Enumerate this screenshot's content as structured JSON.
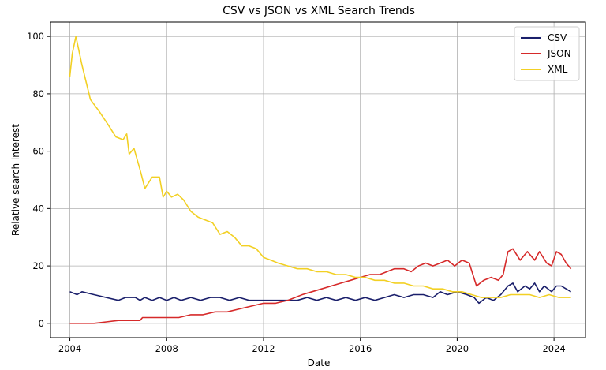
{
  "chart_data": {
    "type": "line",
    "title": "CSV vs JSON vs XML Search Trends",
    "xlabel": "Date",
    "ylabel": "Relative search interest",
    "xlim": [
      2003.2,
      2025.3
    ],
    "ylim": [
      -5,
      105
    ],
    "grid": true,
    "legend_position": "top-right",
    "x_ticks": [
      2004,
      2008,
      2012,
      2016,
      2020,
      2024
    ],
    "y_ticks": [
      0,
      20,
      40,
      60,
      80,
      100
    ],
    "series": [
      {
        "name": "CSV",
        "color": "#1a1f6b",
        "points": [
          [
            2004.0,
            11
          ],
          [
            2004.3,
            10
          ],
          [
            2004.5,
            11
          ],
          [
            2005.0,
            10
          ],
          [
            2005.5,
            9
          ],
          [
            2006.0,
            8
          ],
          [
            2006.3,
            9
          ],
          [
            2006.7,
            9
          ],
          [
            2006.9,
            8
          ],
          [
            2007.1,
            9
          ],
          [
            2007.4,
            8
          ],
          [
            2007.7,
            9
          ],
          [
            2008.0,
            8
          ],
          [
            2008.3,
            9
          ],
          [
            2008.6,
            8
          ],
          [
            2009.0,
            9
          ],
          [
            2009.4,
            8
          ],
          [
            2009.8,
            9
          ],
          [
            2010.2,
            9
          ],
          [
            2010.6,
            8
          ],
          [
            2011.0,
            9
          ],
          [
            2011.4,
            8
          ],
          [
            2011.8,
            8
          ],
          [
            2012.2,
            8
          ],
          [
            2012.6,
            8
          ],
          [
            2013.0,
            8
          ],
          [
            2013.4,
            8
          ],
          [
            2013.8,
            9
          ],
          [
            2014.2,
            8
          ],
          [
            2014.6,
            9
          ],
          [
            2015.0,
            8
          ],
          [
            2015.4,
            9
          ],
          [
            2015.8,
            8
          ],
          [
            2016.2,
            9
          ],
          [
            2016.6,
            8
          ],
          [
            2017.0,
            9
          ],
          [
            2017.4,
            10
          ],
          [
            2017.8,
            9
          ],
          [
            2018.2,
            10
          ],
          [
            2018.6,
            10
          ],
          [
            2019.0,
            9
          ],
          [
            2019.3,
            11
          ],
          [
            2019.6,
            10
          ],
          [
            2020.0,
            11
          ],
          [
            2020.4,
            10
          ],
          [
            2020.7,
            9
          ],
          [
            2020.9,
            7
          ],
          [
            2021.2,
            9
          ],
          [
            2021.5,
            8
          ],
          [
            2021.8,
            10
          ],
          [
            2022.1,
            13
          ],
          [
            2022.3,
            14
          ],
          [
            2022.5,
            11
          ],
          [
            2022.8,
            13
          ],
          [
            2023.0,
            12
          ],
          [
            2023.2,
            14
          ],
          [
            2023.4,
            11
          ],
          [
            2023.6,
            13
          ],
          [
            2023.9,
            11
          ],
          [
            2024.1,
            13
          ],
          [
            2024.3,
            13
          ],
          [
            2024.5,
            12
          ],
          [
            2024.7,
            11
          ]
        ]
      },
      {
        "name": "JSON",
        "color": "#d62a2a",
        "points": [
          [
            2004.0,
            0
          ],
          [
            2005.0,
            0
          ],
          [
            2005.5,
            0.5
          ],
          [
            2006.0,
            1
          ],
          [
            2006.5,
            1
          ],
          [
            2006.9,
            1
          ],
          [
            2007.0,
            2
          ],
          [
            2007.5,
            2
          ],
          [
            2008.0,
            2
          ],
          [
            2008.5,
            2
          ],
          [
            2009.0,
            3
          ],
          [
            2009.5,
            3
          ],
          [
            2010.0,
            4
          ],
          [
            2010.5,
            4
          ],
          [
            2011.0,
            5
          ],
          [
            2011.5,
            6
          ],
          [
            2012.0,
            7
          ],
          [
            2012.5,
            7
          ],
          [
            2013.0,
            8
          ],
          [
            2013.3,
            9
          ],
          [
            2013.6,
            10
          ],
          [
            2014.0,
            11
          ],
          [
            2014.4,
            12
          ],
          [
            2014.8,
            13
          ],
          [
            2015.2,
            14
          ],
          [
            2015.6,
            15
          ],
          [
            2016.0,
            16
          ],
          [
            2016.4,
            17
          ],
          [
            2016.8,
            17
          ],
          [
            2017.1,
            18
          ],
          [
            2017.4,
            19
          ],
          [
            2017.8,
            19
          ],
          [
            2018.1,
            18
          ],
          [
            2018.4,
            20
          ],
          [
            2018.7,
            21
          ],
          [
            2019.0,
            20
          ],
          [
            2019.3,
            21
          ],
          [
            2019.6,
            22
          ],
          [
            2019.9,
            20
          ],
          [
            2020.2,
            22
          ],
          [
            2020.5,
            21
          ],
          [
            2020.8,
            13
          ],
          [
            2021.1,
            15
          ],
          [
            2021.4,
            16
          ],
          [
            2021.7,
            15
          ],
          [
            2021.9,
            17
          ],
          [
            2022.1,
            25
          ],
          [
            2022.3,
            26
          ],
          [
            2022.6,
            22
          ],
          [
            2022.9,
            25
          ],
          [
            2023.2,
            22
          ],
          [
            2023.4,
            25
          ],
          [
            2023.7,
            21
          ],
          [
            2023.9,
            20
          ],
          [
            2024.1,
            25
          ],
          [
            2024.3,
            24
          ],
          [
            2024.5,
            21
          ],
          [
            2024.7,
            19
          ]
        ]
      },
      {
        "name": "XML",
        "color": "#f2d024",
        "points": [
          [
            2004.0,
            86
          ],
          [
            2004.1,
            94
          ],
          [
            2004.25,
            100
          ],
          [
            2004.5,
            90
          ],
          [
            2004.85,
            78
          ],
          [
            2005.2,
            74
          ],
          [
            2005.6,
            69
          ],
          [
            2005.9,
            65
          ],
          [
            2006.2,
            64
          ],
          [
            2006.35,
            66
          ],
          [
            2006.45,
            59
          ],
          [
            2006.65,
            61
          ],
          [
            2006.85,
            55
          ],
          [
            2006.95,
            52
          ],
          [
            2007.1,
            47
          ],
          [
            2007.4,
            51
          ],
          [
            2007.7,
            51
          ],
          [
            2007.85,
            44
          ],
          [
            2008.0,
            46
          ],
          [
            2008.2,
            44
          ],
          [
            2008.45,
            45
          ],
          [
            2008.7,
            43
          ],
          [
            2009.0,
            39
          ],
          [
            2009.3,
            37
          ],
          [
            2009.6,
            36
          ],
          [
            2009.9,
            35
          ],
          [
            2010.2,
            31
          ],
          [
            2010.5,
            32
          ],
          [
            2010.8,
            30
          ],
          [
            2011.1,
            27
          ],
          [
            2011.4,
            27
          ],
          [
            2011.7,
            26
          ],
          [
            2012.0,
            23
          ],
          [
            2012.3,
            22
          ],
          [
            2012.6,
            21
          ],
          [
            2013.0,
            20
          ],
          [
            2013.4,
            19
          ],
          [
            2013.8,
            19
          ],
          [
            2014.2,
            18
          ],
          [
            2014.6,
            18
          ],
          [
            2015.0,
            17
          ],
          [
            2015.4,
            17
          ],
          [
            2015.8,
            16
          ],
          [
            2016.2,
            16
          ],
          [
            2016.6,
            15
          ],
          [
            2017.0,
            15
          ],
          [
            2017.4,
            14
          ],
          [
            2017.8,
            14
          ],
          [
            2018.2,
            13
          ],
          [
            2018.6,
            13
          ],
          [
            2019.0,
            12
          ],
          [
            2019.4,
            12
          ],
          [
            2019.8,
            11
          ],
          [
            2020.2,
            11
          ],
          [
            2020.6,
            10
          ],
          [
            2021.0,
            9
          ],
          [
            2021.4,
            9
          ],
          [
            2021.8,
            9
          ],
          [
            2022.2,
            10
          ],
          [
            2022.6,
            10
          ],
          [
            2023.0,
            10
          ],
          [
            2023.4,
            9
          ],
          [
            2023.8,
            10
          ],
          [
            2024.2,
            9
          ],
          [
            2024.5,
            9
          ],
          [
            2024.7,
            9
          ]
        ]
      }
    ]
  }
}
